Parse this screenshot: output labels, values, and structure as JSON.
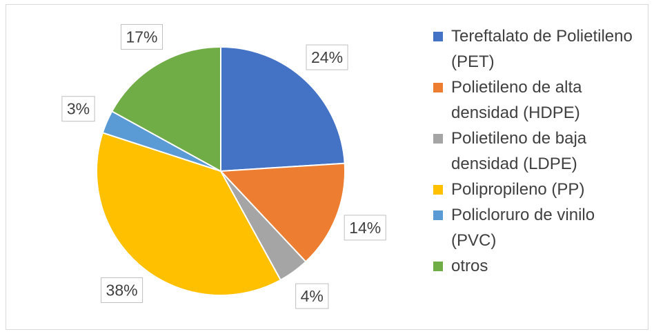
{
  "chart_data": {
    "type": "pie",
    "categories": [
      "Tereftalato de Polietileno (PET)",
      "Polietileno de alta densidad (HDPE)",
      "Polietileno de baja densidad (LDPE)",
      "Polipropileno (PP)",
      "Policloruro de vinilo (PVC)",
      "otros"
    ],
    "values": [
      24,
      14,
      4,
      38,
      3,
      17
    ],
    "value_labels": [
      "24%",
      "14%",
      "4%",
      "38%",
      "3%",
      "17%"
    ],
    "colors": [
      "#4472c4",
      "#ed7d31",
      "#a5a5a5",
      "#ffc000",
      "#5b9bd5",
      "#70ad47"
    ],
    "legend": "right"
  }
}
